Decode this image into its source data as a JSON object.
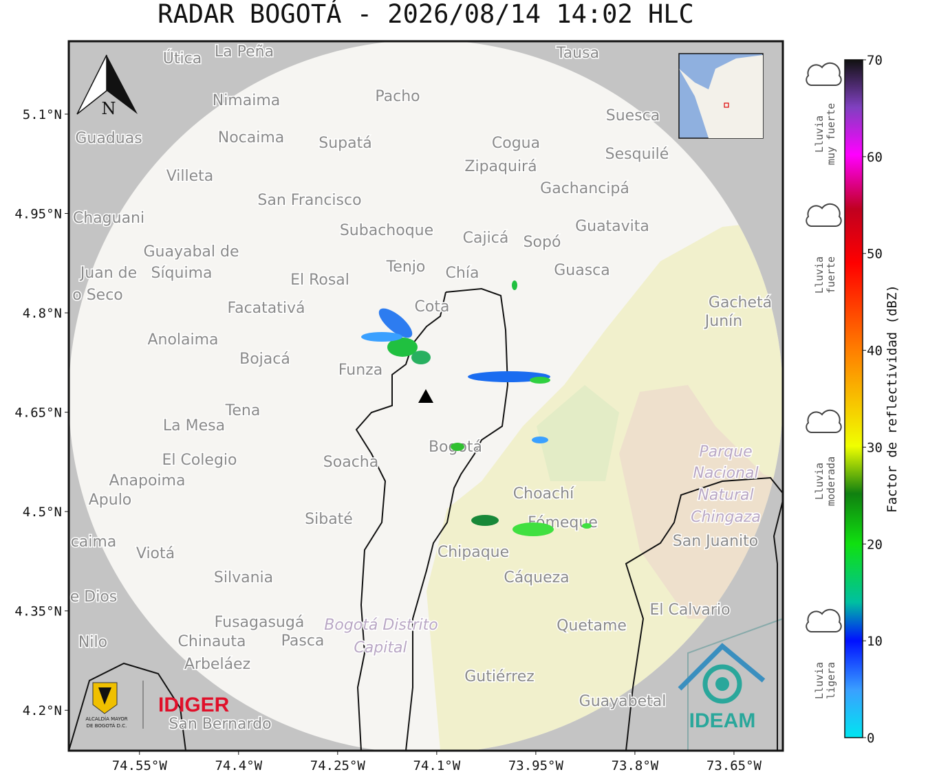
{
  "title": "RADAR BOGOTÁ - 2026/08/14 14:02 HLC",
  "map": {
    "xlim": [
      -74.657,
      -73.576
    ],
    "ylim": [
      4.139,
      5.21
    ],
    "xticks": [
      {
        "value": -74.55,
        "label": "74.55°W"
      },
      {
        "value": -74.4,
        "label": "74.4°W"
      },
      {
        "value": -74.25,
        "label": "74.25°W"
      },
      {
        "value": -74.1,
        "label": "74.1°W"
      },
      {
        "value": -73.95,
        "label": "73.95°W"
      },
      {
        "value": -73.8,
        "label": "73.8°W"
      },
      {
        "value": -73.65,
        "label": "73.65°W"
      }
    ],
    "yticks": [
      {
        "value": 5.1,
        "label": "5.1°N"
      },
      {
        "value": 4.95,
        "label": "4.95°N"
      },
      {
        "value": 4.8,
        "label": "4.8°N"
      },
      {
        "value": 4.65,
        "label": "4.65°N"
      },
      {
        "value": 4.5,
        "label": "4.5°N"
      },
      {
        "value": 4.35,
        "label": "4.35°N"
      },
      {
        "value": 4.2,
        "label": "4.2°N"
      }
    ],
    "grid": true,
    "north": "N",
    "places": [
      "La Peña",
      "Útica",
      "Tausa",
      "Pacho",
      "Nimaima",
      "Suesca",
      "Guaduas",
      "Nocaima",
      "Supatá",
      "Cogua",
      "Zipaquirá",
      "Sesquilé",
      "Villeta",
      "Gachancipá",
      "San Francisco",
      "Chaguani",
      "Guatavita",
      "Subachoque",
      "Cajicá",
      "Sopó",
      "Guayabal de",
      "Síquima",
      "Juan de",
      "o Seco",
      "Tenjo",
      "Chía",
      "Guasca",
      "El Rosal",
      "Facatativá",
      "Cota",
      "Gachetá",
      "Junín",
      "Anolaima",
      "Bojacá",
      "Funza",
      "Tena",
      "La Mesa",
      "El Colegio",
      "Soacha",
      "Bogotá",
      "Anapoima",
      "Apulo",
      "Choachí",
      "Fómeque",
      "Sibaté",
      "San Juanito",
      "caima",
      "Viotá",
      "Chipaque",
      "Silvania",
      "Cáqueza",
      "e Dios",
      "El Calvario",
      "Fusagasugá",
      "Quetame",
      "Nilo",
      "Chinauta",
      "Pasca",
      "Arbeláez",
      "Gutiérrez",
      "Guayabetal",
      "San Bernardo"
    ],
    "park_labels": [
      "Parque",
      "Nacional",
      "Natural",
      "Chingaza",
      "Bogotá Distrito",
      "Capital"
    ]
  },
  "colorbar": {
    "label": "Factor de reflectividad (dBZ)",
    "lim": [
      0,
      70
    ],
    "ticks": [
      0,
      10,
      20,
      30,
      40,
      50,
      60,
      70
    ],
    "levels": [
      [
        "Lluvia",
        "muy fuerte"
      ],
      [
        "Lluvia",
        "fuerte"
      ],
      [
        "Lluvia",
        "moderada"
      ],
      [
        "Lluvia",
        "ligera"
      ]
    ]
  },
  "logos": {
    "alcaldia": [
      "ALCALDÍA MAYOR",
      "DE BOGOTÁ D.C."
    ],
    "idiger": "IDIGER",
    "ideam": "IDEAM"
  }
}
